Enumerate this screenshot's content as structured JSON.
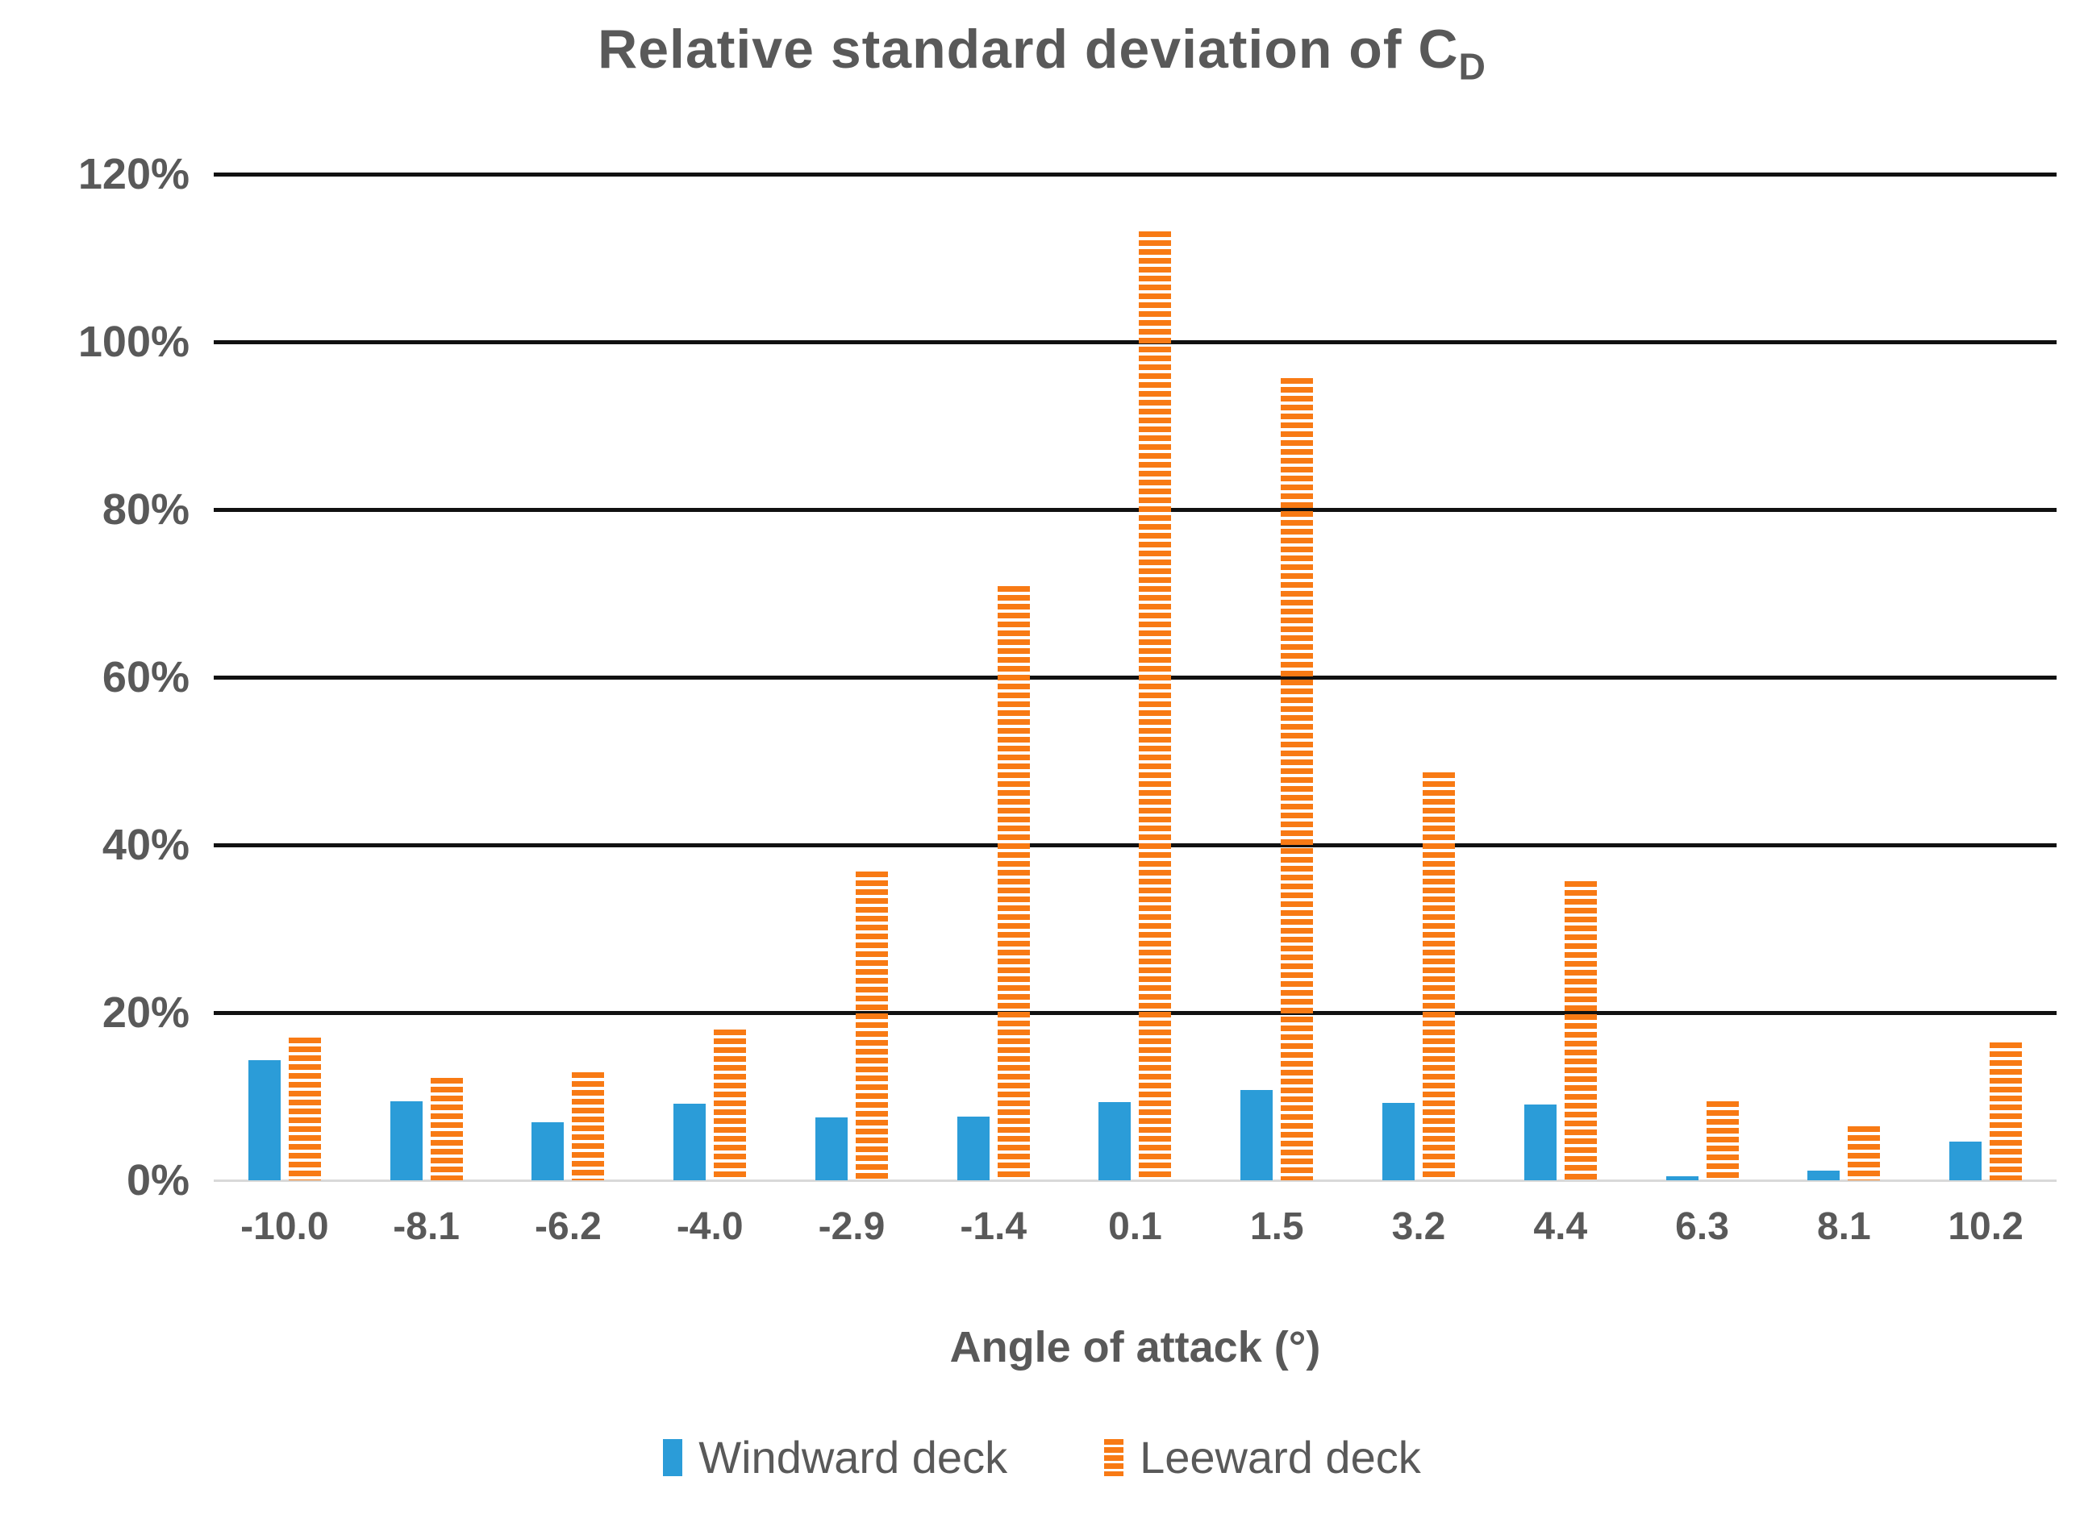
{
  "title": {
    "main": "Relative standard deviation of C",
    "sub": "D"
  },
  "colors": {
    "windward": "#2B9CD8",
    "leeward": "#F87A14",
    "text": "#595959",
    "gridline": "#111111",
    "axis_line": "#D9D9D9",
    "background": "#FFFFFF"
  },
  "chart_data": {
    "type": "bar",
    "title": "Relative standard deviation of C_D",
    "xlabel": "Angle of attack (°)",
    "ylabel": "",
    "categories": [
      "-10.0",
      "-8.1",
      "-6.2",
      "-4.0",
      "-2.9",
      "-1.4",
      "0.1",
      "1.5",
      "3.2",
      "4.4",
      "6.3",
      "8.1",
      "10.2"
    ],
    "series": [
      {
        "name": "Windward deck",
        "style": "solid",
        "color": "#2B9CD8",
        "values": [
          14.3,
          9.4,
          6.9,
          9.1,
          7.5,
          7.6,
          9.3,
          10.8,
          9.2,
          9.0,
          0.5,
          1.2,
          4.6
        ]
      },
      {
        "name": "Leeward deck",
        "style": "striped",
        "color": "#F87A14",
        "values": [
          17.0,
          12.2,
          12.9,
          18.0,
          36.8,
          70.9,
          113.2,
          95.7,
          48.7,
          35.7,
          9.4,
          6.4,
          16.4
        ]
      }
    ],
    "ylim": [
      0,
      120
    ],
    "y_ticks": [
      {
        "value": 0,
        "label": "0%"
      },
      {
        "value": 20,
        "label": "20%"
      },
      {
        "value": 40,
        "label": "40%"
      },
      {
        "value": 60,
        "label": "60%"
      },
      {
        "value": 80,
        "label": "80%"
      },
      {
        "value": 100,
        "label": "100%"
      },
      {
        "value": 120,
        "label": "120%"
      }
    ],
    "grid": "horizontal",
    "legend_position": "bottom"
  }
}
